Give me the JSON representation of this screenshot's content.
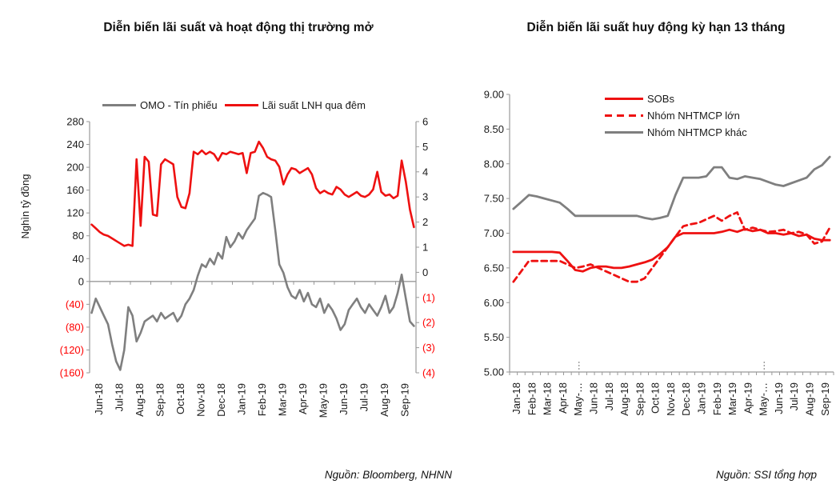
{
  "colors": {
    "red": "#ee1111",
    "gray": "#7f7f7f",
    "axis": "#999999",
    "text": "#1a1a1a",
    "negative_label": "#ff0000"
  },
  "chart_data": [
    {
      "type": "line",
      "title": "Diễn biến lãi suất và hoạt động thị trường mở",
      "source": "Nguồn: Bloomberg, NHNN",
      "left_axis": {
        "title": "Nghìn tỷ đồng",
        "ticks": [
          280,
          240,
          200,
          160,
          120,
          80,
          40,
          0,
          -40,
          -80,
          -120,
          -160
        ],
        "min": -160,
        "max": 280
      },
      "right_axis": {
        "ticks": [
          6,
          5,
          4,
          3,
          2,
          1,
          0,
          -1,
          -2,
          -3,
          -4
        ],
        "min": -4,
        "max": 6
      },
      "x_labels": [
        "Jun-18",
        "Jul-18",
        "Aug-18",
        "Sep-18",
        "Oct-18",
        "Nov-18",
        "Dec-18",
        "Jan-19",
        "Feb-19",
        "Mar-19",
        "Apr-19",
        "May-19",
        "Jun-19",
        "Jul-19",
        "Aug-19",
        "Sep-19"
      ],
      "series": [
        {
          "name": "OMO - Tín phiếu",
          "color": "#7f7f7f",
          "axis": "left",
          "dash": false,
          "values": [
            -55,
            -30,
            -45,
            -60,
            -75,
            -110,
            -140,
            -155,
            -120,
            -45,
            -60,
            -105,
            -90,
            -70,
            -65,
            -60,
            -70,
            -55,
            -65,
            -60,
            -55,
            -70,
            -60,
            -40,
            -30,
            -15,
            10,
            30,
            25,
            40,
            30,
            50,
            40,
            78,
            60,
            70,
            85,
            75,
            90,
            100,
            110,
            150,
            155,
            152,
            148,
            90,
            30,
            15,
            -10,
            -25,
            -30,
            -15,
            -35,
            -20,
            -40,
            -45,
            -30,
            -55,
            -40,
            -50,
            -65,
            -85,
            -75,
            -50,
            -40,
            -30,
            -45,
            -55,
            -40,
            -50,
            -60,
            -45,
            -25,
            -55,
            -45,
            -20,
            12,
            -30,
            -70,
            -78
          ]
        },
        {
          "name": "Lãi suất LNH qua đêm",
          "color": "#ee1111",
          "axis": "right",
          "dash": false,
          "values": [
            1.9,
            1.75,
            1.6,
            1.5,
            1.45,
            1.35,
            1.25,
            1.15,
            1.05,
            1.1,
            1.05,
            4.5,
            1.85,
            4.6,
            4.4,
            2.3,
            2.25,
            4.3,
            4.5,
            4.4,
            4.3,
            3.0,
            2.6,
            2.55,
            3.15,
            4.8,
            4.7,
            4.85,
            4.7,
            4.8,
            4.7,
            4.45,
            4.75,
            4.7,
            4.8,
            4.75,
            4.7,
            4.75,
            3.95,
            4.75,
            4.8,
            5.2,
            4.95,
            4.6,
            4.5,
            4.45,
            4.2,
            3.5,
            3.9,
            4.15,
            4.1,
            3.95,
            4.05,
            4.15,
            3.9,
            3.35,
            3.15,
            3.25,
            3.15,
            3.1,
            3.4,
            3.3,
            3.1,
            3.0,
            3.1,
            3.2,
            3.05,
            3.0,
            3.1,
            3.3,
            4.0,
            3.2,
            3.05,
            3.1,
            2.95,
            3.05,
            4.45,
            3.6,
            2.5,
            1.8
          ]
        }
      ]
    },
    {
      "type": "line",
      "title": "Diễn biến lãi suất huy động kỳ hạn 13 tháng",
      "source": "Nguồn: SSI tổng hợp",
      "y_axis": {
        "ticks": [
          9.0,
          8.5,
          8.0,
          7.5,
          7.0,
          6.5,
          6.0,
          5.5,
          5.0
        ],
        "min": 5,
        "max": 9
      },
      "x_labels": [
        "Jan-18",
        "Feb-18",
        "Mar-18",
        "Apr-18",
        "May-…",
        "Jun-18",
        "Jul-18",
        "Aug-18",
        "Sep-18",
        "Oct-18",
        "Nov-18",
        "Dec-18",
        "Jan-19",
        "Feb-19",
        "Mar-19",
        "Apr-19",
        "May-…",
        "Jun-19",
        "Jul-19",
        "Aug-19",
        "Sep-19"
      ],
      "series": [
        {
          "name": "SOBs",
          "color": "#ee1111",
          "dash": false,
          "values": [
            6.73,
            6.73,
            6.73,
            6.73,
            6.73,
            6.73,
            6.72,
            6.6,
            6.47,
            6.45,
            6.5,
            6.52,
            6.52,
            6.5,
            6.5,
            6.52,
            6.55,
            6.58,
            6.62,
            6.7,
            6.8,
            6.95,
            7.0,
            7.0,
            7.0,
            7.0,
            7.0,
            7.02,
            7.05,
            7.02,
            7.06,
            7.03,
            7.05,
            7.0,
            7.0,
            6.98,
            7.0,
            6.96,
            6.98,
            6.92,
            6.9,
            6.9
          ]
        },
        {
          "name": "Nhóm NHTMCP lớn",
          "color": "#ee1111",
          "dash": true,
          "values": [
            6.3,
            6.45,
            6.6,
            6.6,
            6.6,
            6.6,
            6.6,
            6.55,
            6.5,
            6.52,
            6.55,
            6.5,
            6.45,
            6.4,
            6.35,
            6.3,
            6.3,
            6.35,
            6.5,
            6.65,
            6.8,
            6.95,
            7.1,
            7.13,
            7.15,
            7.2,
            7.25,
            7.18,
            7.25,
            7.3,
            7.05,
            7.08,
            7.05,
            7.02,
            7.03,
            7.05,
            7.0,
            7.02,
            6.98,
            6.85,
            6.88,
            7.08
          ]
        },
        {
          "name": "Nhóm NHTMCP khác",
          "color": "#7f7f7f",
          "dash": false,
          "values": [
            7.35,
            7.45,
            7.55,
            7.53,
            7.5,
            7.47,
            7.44,
            7.35,
            7.25,
            7.25,
            7.25,
            7.25,
            7.25,
            7.25,
            7.25,
            7.25,
            7.25,
            7.22,
            7.2,
            7.22,
            7.25,
            7.55,
            7.8,
            7.8,
            7.8,
            7.82,
            7.95,
            7.95,
            7.8,
            7.78,
            7.82,
            7.8,
            7.78,
            7.74,
            7.7,
            7.68,
            7.72,
            7.76,
            7.8,
            7.92,
            7.98,
            8.1
          ]
        }
      ]
    }
  ]
}
